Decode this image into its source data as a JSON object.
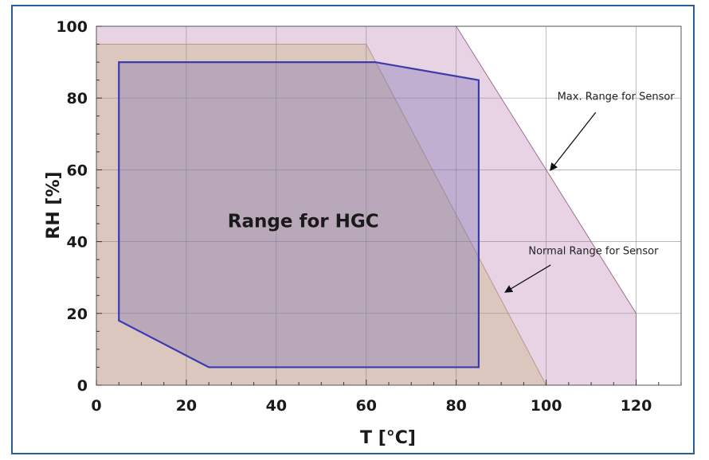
{
  "chart_data": {
    "type": "area",
    "xlabel": "T [°C]",
    "ylabel": "RH [%]",
    "xlim": [
      0,
      130
    ],
    "ylim": [
      0,
      100
    ],
    "xticks": [
      0,
      20,
      40,
      60,
      80,
      100,
      120
    ],
    "yticks": [
      0,
      20,
      40,
      60,
      80,
      100
    ],
    "grid": true,
    "regions": [
      {
        "name": "Max. Range for Sensor",
        "color": "#e7d3e3",
        "edge_color": "#a46a96",
        "points": [
          [
            0,
            0
          ],
          [
            0,
            100
          ],
          [
            80,
            100
          ],
          [
            120,
            20
          ],
          [
            120,
            0
          ]
        ]
      },
      {
        "name": "Normal Range for Sensor",
        "color": "#dcc7bf",
        "edge_color": "#b79a85",
        "points": [
          [
            0,
            0
          ],
          [
            0,
            95
          ],
          [
            60,
            95
          ],
          [
            100,
            0
          ]
        ]
      },
      {
        "name": "Range for HGC",
        "color": "rgba(130, 115, 180, 0.38)",
        "edge_color": "#3b3bb0",
        "points": [
          [
            5,
            18
          ],
          [
            5,
            90
          ],
          [
            62,
            90
          ],
          [
            85,
            85
          ],
          [
            85,
            5
          ],
          [
            25,
            5
          ]
        ]
      }
    ],
    "annotations": [
      {
        "text": "Max. Range for Sensor",
        "arrow_to": [
          101,
          60
        ]
      },
      {
        "text": "Normal Range for Sensor",
        "arrow_to": [
          91,
          26
        ]
      },
      {
        "text": "Range for HGC"
      }
    ]
  }
}
